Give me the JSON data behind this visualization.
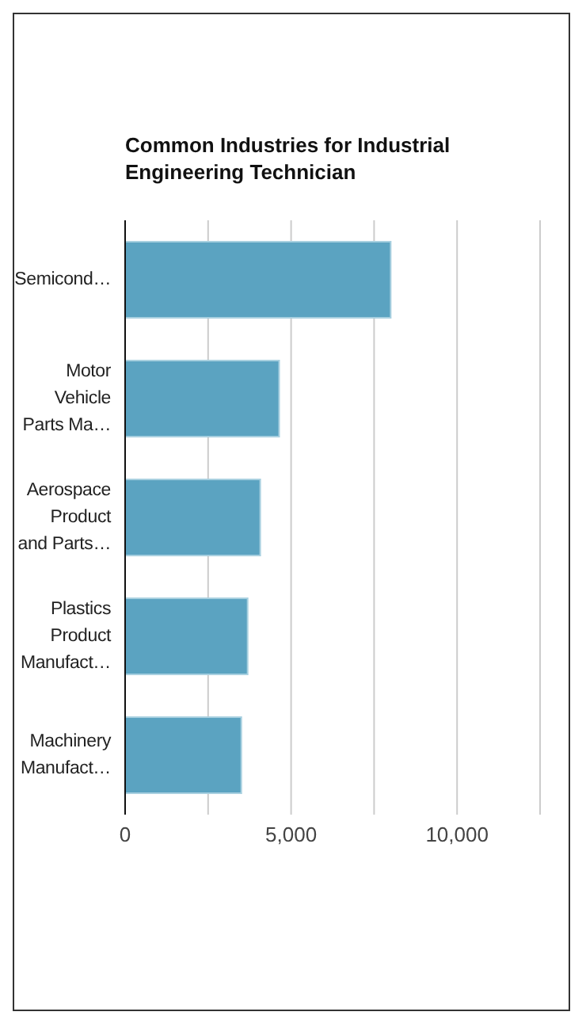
{
  "chart_data": {
    "type": "bar",
    "orientation": "horizontal",
    "title": "Common Industries for Industrial Engineering Technician",
    "categories": [
      "Semicond…",
      "Motor Vehicle Parts Ma…",
      "Aerospace Product and Parts…",
      "Plastics Product Manufact…",
      "Machinery Manufact…"
    ],
    "values": [
      8000,
      4640,
      4070,
      3690,
      3500
    ],
    "color": "#5ba3c1",
    "xlim": [
      0,
      12500
    ],
    "xticks": [
      0,
      {
        "value": 2500,
        "label": null
      },
      {
        "value": 5000,
        "label": "5,000"
      },
      {
        "value": 7500,
        "label": null
      },
      {
        "value": 10000,
        "label": "10,000"
      }
    ],
    "grid": "x"
  }
}
